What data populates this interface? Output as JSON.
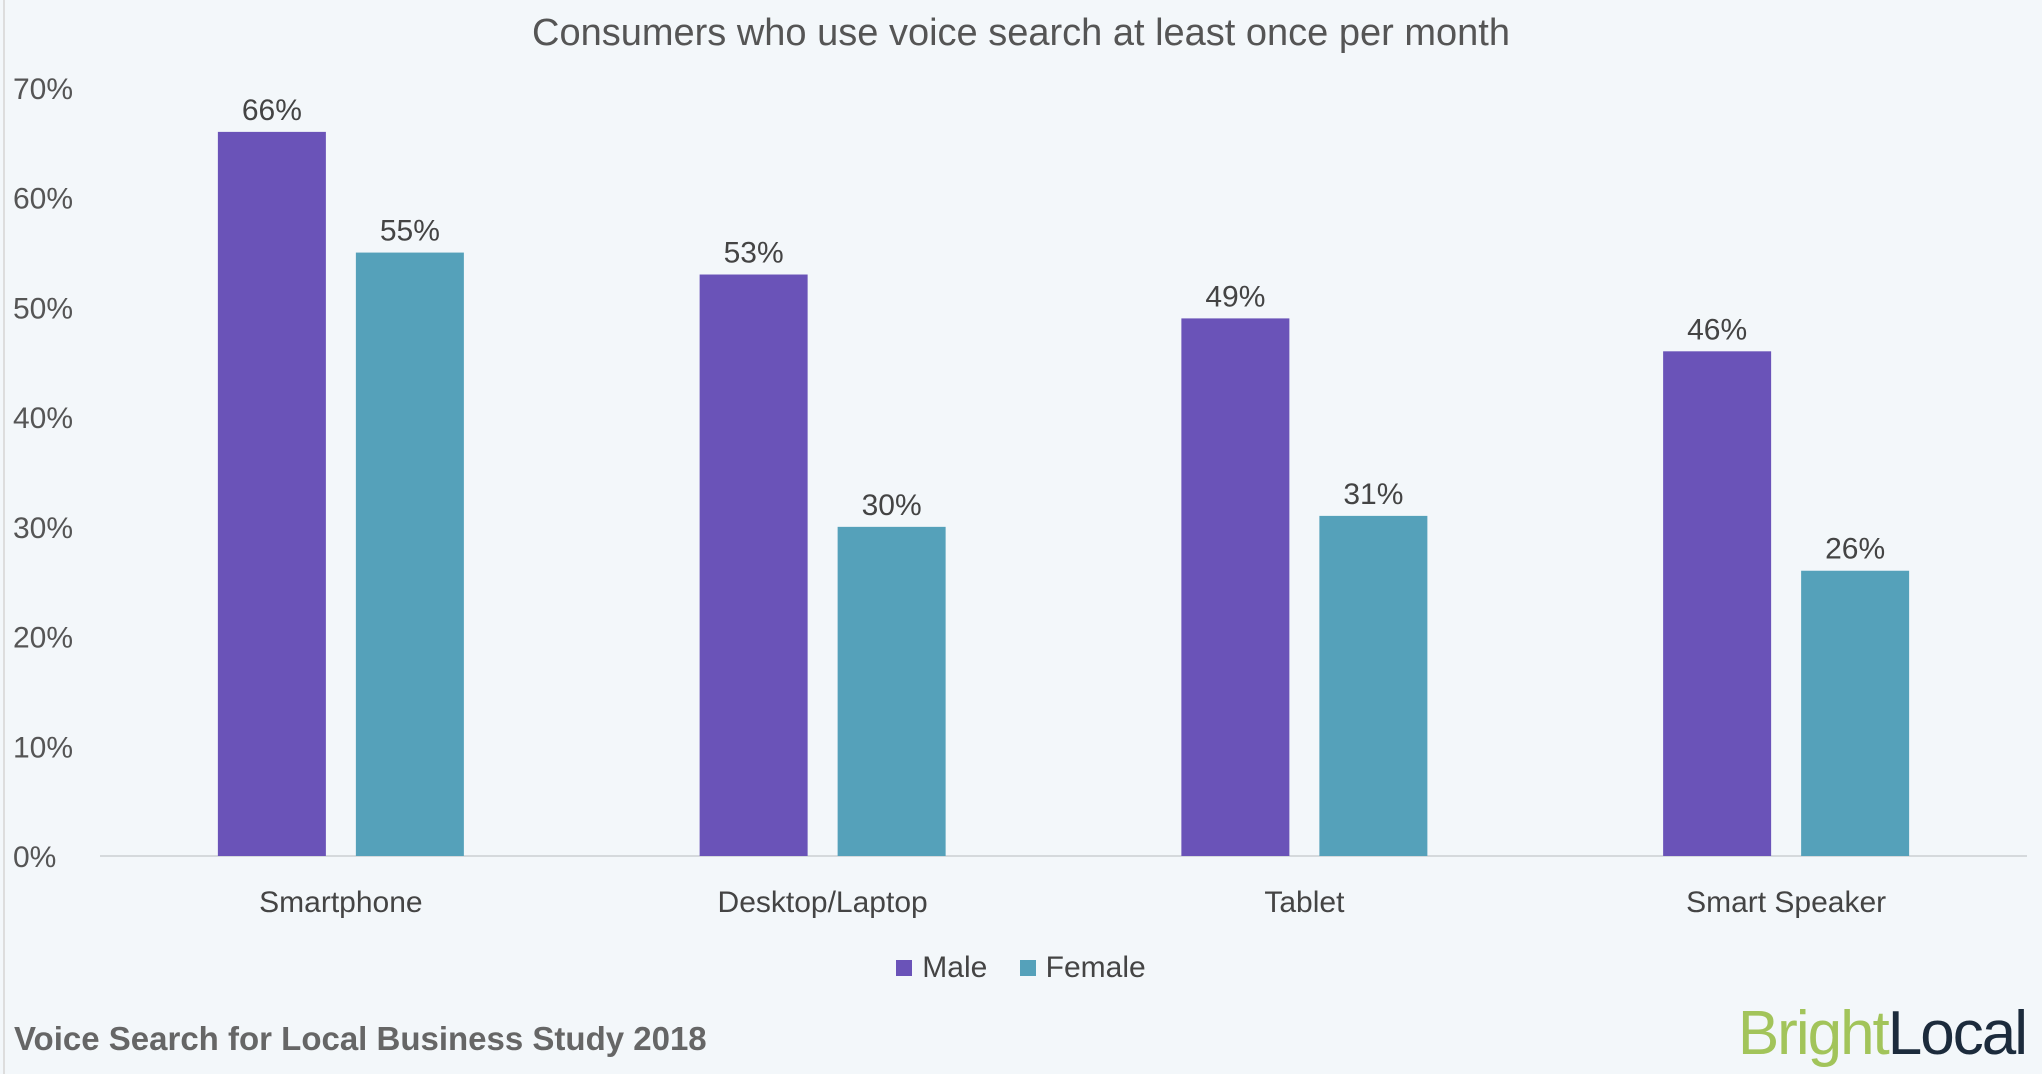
{
  "chart_data": {
    "type": "bar",
    "title": "Consumers who use voice search at least once per month",
    "categories": [
      "Smartphone",
      "Desktop/Laptop",
      "Tablet",
      "Smart Speaker"
    ],
    "series": [
      {
        "name": "Male",
        "values": [
          66,
          53,
          49,
          46
        ],
        "color": "#6a53b8"
      },
      {
        "name": "Female",
        "values": [
          55,
          30,
          31,
          26
        ],
        "color": "#55a1ba"
      }
    ],
    "data_labels": [
      [
        "66%",
        "53%",
        "49%",
        "46%"
      ],
      [
        "55%",
        "30%",
        "31%",
        "26%"
      ]
    ],
    "yticks": [
      "0%",
      "10%",
      "20%",
      "30%",
      "40%",
      "50%",
      "60%",
      "70%"
    ],
    "ylim": [
      0,
      70
    ],
    "xlabel": "",
    "ylabel": "",
    "grid": false,
    "legend_position": "bottom"
  },
  "footer": {
    "source": "Voice Search for Local Business Study 2018"
  },
  "logo": {
    "part1": "Bright",
    "part2": "Local"
  }
}
